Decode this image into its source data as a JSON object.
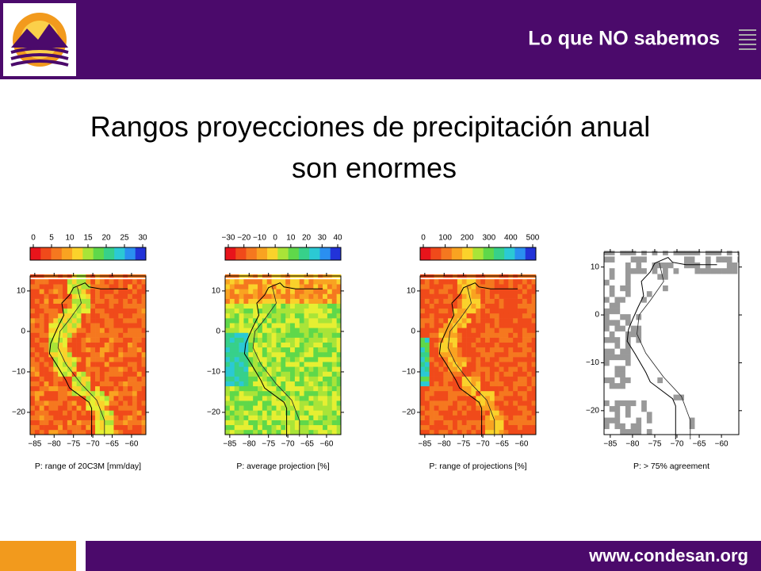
{
  "header": {
    "title": "Lo que NO sabemos"
  },
  "slide_title": "Rangos proyecciones de precipitación anual son enormes",
  "panels": [
    {
      "colorbar": {
        "ticks": [
          0,
          5,
          10,
          15,
          20,
          25,
          30
        ]
      },
      "xlim": [
        -86.2,
        -56.3
      ],
      "ylim": [
        -25.5,
        13.7
      ],
      "xticks": [
        {
          "value": -85,
          "label": "−85"
        },
        {
          "value": -80,
          "label": "−80"
        },
        {
          "value": -75,
          "label": "−75"
        },
        {
          "value": -70,
          "label": "−70"
        },
        {
          "value": -65,
          "label": "−65"
        },
        {
          "value": -60,
          "label": "−60"
        }
      ],
      "yticks": [
        10,
        0,
        {
          "value": -10,
          "label": "−10"
        },
        {
          "value": -20,
          "label": "−20"
        }
      ],
      "caption": "P: range of 20C3M [mm/day]"
    },
    {
      "colorbar": {
        "ticks": [
          {
            "value": -30,
            "label": "−30"
          },
          {
            "value": -20,
            "label": "−20"
          },
          {
            "value": -10,
            "label": "−10"
          },
          0,
          10,
          20,
          30,
          40
        ]
      },
      "xlim": [
        -86.2,
        -56.3
      ],
      "ylim": [
        -25.5,
        13.7
      ],
      "xticks": [
        {
          "value": -85,
          "label": "−85"
        },
        {
          "value": -80,
          "label": "−80"
        },
        {
          "value": -75,
          "label": "−75"
        },
        {
          "value": -70,
          "label": "−70"
        },
        {
          "value": -65,
          "label": "−65"
        },
        {
          "value": -60,
          "label": "−60"
        }
      ],
      "yticks": [
        10,
        0,
        {
          "value": -10,
          "label": "−10"
        },
        {
          "value": -20,
          "label": "−20"
        }
      ],
      "caption": "P: average projection [%]"
    },
    {
      "colorbar": {
        "ticks": [
          0,
          100,
          200,
          300,
          400,
          500
        ]
      },
      "xlim": [
        -86.2,
        -56.3
      ],
      "ylim": [
        -25.5,
        13.7
      ],
      "xticks": [
        {
          "value": -85,
          "label": "−85"
        },
        {
          "value": -80,
          "label": "−80"
        },
        {
          "value": -75,
          "label": "−75"
        },
        {
          "value": -70,
          "label": "−70"
        },
        {
          "value": -65,
          "label": "−65"
        },
        {
          "value": -60,
          "label": "−60"
        }
      ],
      "yticks": [
        10,
        0,
        {
          "value": -10,
          "label": "−10"
        },
        {
          "value": -20,
          "label": "−20"
        }
      ],
      "caption": "P: range of projections [%]"
    },
    {
      "xlim": [
        -86.4,
        -56.1
      ],
      "ylim": [
        -25,
        13.1
      ],
      "xticks": [
        {
          "value": -85,
          "label": "−85"
        },
        {
          "value": -80,
          "label": "−80"
        },
        {
          "value": -75,
          "label": "−75"
        },
        {
          "value": -70,
          "label": "−70"
        },
        {
          "value": -65,
          "label": "−65"
        },
        {
          "value": -60,
          "label": "−60"
        }
      ],
      "yticks": [
        10,
        0,
        {
          "value": -10,
          "label": "−10"
        },
        {
          "value": -20,
          "label": "−20"
        }
      ],
      "caption": "P: > 75% agreement"
    }
  ],
  "footer": {
    "url": "www.condesan.org"
  }
}
